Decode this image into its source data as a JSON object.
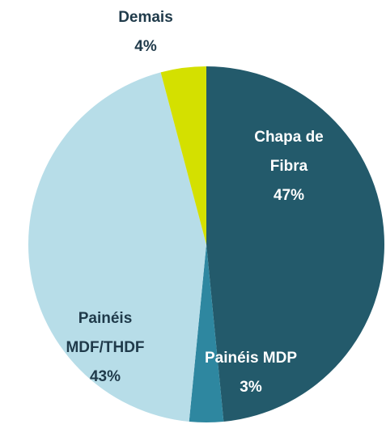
{
  "chart_data": {
    "type": "pie",
    "categories": [
      "Chapa de Fibra",
      "Painéis MDP",
      "Painéis MDF/THDF",
      "Demais"
    ],
    "values": [
      47,
      3,
      43,
      4
    ],
    "value_labels": [
      "47%",
      "3%",
      "43%",
      "4%"
    ],
    "colors": [
      "#235a6b",
      "#2e87a0",
      "#b7dde8",
      "#d4e000"
    ]
  }
}
